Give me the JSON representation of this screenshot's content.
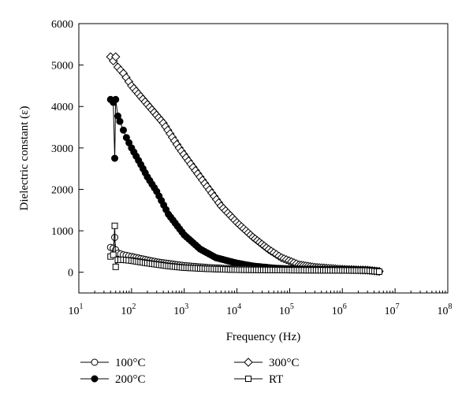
{
  "chart_data": {
    "type": "scatter",
    "xlabel": "Frequency (Hz)",
    "ylabel": "Dielectric constant (ε)",
    "x_scale": "log",
    "xlim": [
      10,
      100000000
    ],
    "ylim": [
      -500,
      6000
    ],
    "x_ticks": [
      {
        "value": 10,
        "base": "10",
        "exp": "1"
      },
      {
        "value": 100,
        "base": "10",
        "exp": "2"
      },
      {
        "value": 1000,
        "base": "10",
        "exp": "3"
      },
      {
        "value": 10000,
        "base": "10",
        "exp": "4"
      },
      {
        "value": 100000,
        "base": "10",
        "exp": "5"
      },
      {
        "value": 1000000,
        "base": "10",
        "exp": "6"
      },
      {
        "value": 10000000,
        "base": "10",
        "exp": "7"
      },
      {
        "value": 100000000,
        "base": "10",
        "exp": "8"
      }
    ],
    "y_ticks": [
      0,
      1000,
      2000,
      3000,
      4000,
      5000,
      6000
    ],
    "grid": false,
    "legend_position": "below",
    "series": [
      {
        "name": "100°C",
        "marker": "circle-open",
        "points": [
          [
            40,
            600
          ],
          [
            45,
            580
          ],
          [
            48,
            840
          ],
          [
            50,
            540
          ],
          [
            55,
            460
          ],
          [
            70,
            420
          ],
          [
            100,
            380
          ],
          [
            150,
            330
          ],
          [
            300,
            250
          ],
          [
            1000,
            160
          ],
          [
            3000,
            110
          ],
          [
            10000,
            80
          ],
          [
            30000,
            70
          ],
          [
            100000,
            60
          ],
          [
            1000000,
            55
          ],
          [
            3000000,
            50
          ],
          [
            5000000,
            20
          ]
        ]
      },
      {
        "name": "200°C",
        "marker": "circle-filled",
        "points": [
          [
            40,
            4170
          ],
          [
            45,
            4100
          ],
          [
            48,
            2750
          ],
          [
            50,
            4170
          ],
          [
            55,
            3770
          ],
          [
            60,
            3640
          ],
          [
            70,
            3430
          ],
          [
            80,
            3250
          ],
          [
            100,
            3000
          ],
          [
            150,
            2600
          ],
          [
            200,
            2300
          ],
          [
            300,
            1950
          ],
          [
            500,
            1400
          ],
          [
            1000,
            900
          ],
          [
            2000,
            560
          ],
          [
            4000,
            350
          ],
          [
            10000,
            220
          ],
          [
            20000,
            150
          ],
          [
            50000,
            100
          ],
          [
            100000,
            80
          ],
          [
            1000000,
            60
          ],
          [
            3000000,
            50
          ],
          [
            5000000,
            20
          ]
        ]
      },
      {
        "name": "300°C",
        "marker": "diamond-open",
        "points": [
          [
            40,
            5200
          ],
          [
            45,
            5100
          ],
          [
            50,
            5200
          ],
          [
            55,
            4950
          ],
          [
            70,
            4800
          ],
          [
            100,
            4500
          ],
          [
            200,
            4050
          ],
          [
            400,
            3600
          ],
          [
            800,
            3000
          ],
          [
            2000,
            2300
          ],
          [
            5000,
            1600
          ],
          [
            10000,
            1200
          ],
          [
            20000,
            850
          ],
          [
            40000,
            550
          ],
          [
            70000,
            350
          ],
          [
            150000,
            180
          ],
          [
            300000,
            120
          ],
          [
            1000000,
            70
          ],
          [
            3000000,
            50
          ],
          [
            5000000,
            20
          ]
        ]
      },
      {
        "name": "RT",
        "marker": "square-open",
        "points": [
          [
            40,
            380
          ],
          [
            45,
            420
          ],
          [
            48,
            1120
          ],
          [
            50,
            130
          ],
          [
            55,
            300
          ],
          [
            70,
            300
          ],
          [
            100,
            280
          ],
          [
            200,
            220
          ],
          [
            500,
            150
          ],
          [
            1000,
            110
          ],
          [
            3000,
            80
          ],
          [
            10000,
            60
          ],
          [
            100000,
            50
          ],
          [
            1000000,
            45
          ],
          [
            3000000,
            40
          ],
          [
            5000000,
            15
          ]
        ]
      }
    ]
  }
}
